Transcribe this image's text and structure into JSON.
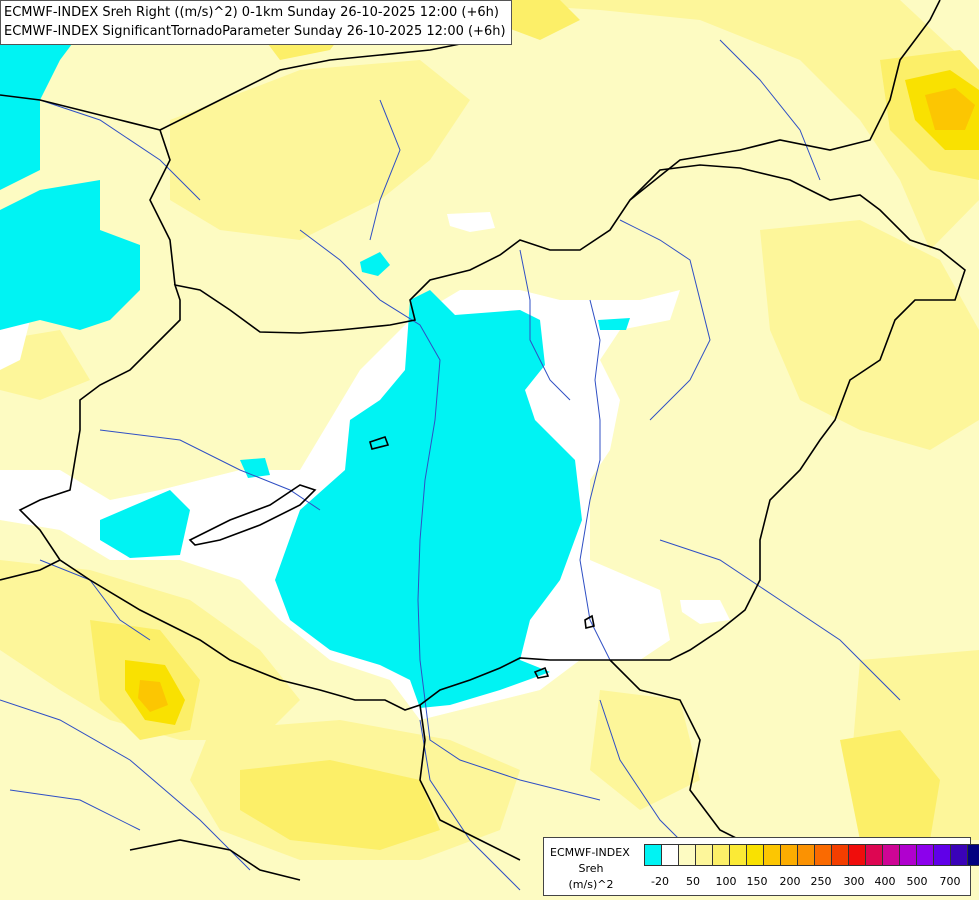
{
  "title": {
    "line1": "ECMWF-INDEX Sreh Right ((m/s)^2) 0-1km Sunday 26-10-2025 12:00 (+6h)",
    "line2": "ECMWF-INDEX SignificantTornadoParameter Sunday 26-10-2025 12:00 (+6h)"
  },
  "legend": {
    "name": "ECMWF-INDEX",
    "variable": "Sreh",
    "unit": "(m/s)^2",
    "colors": [
      "#00f3f3",
      "#ffffff",
      "#fdfbc2",
      "#fdf69a",
      "#fcef68",
      "#fbea36",
      "#f9e101",
      "#fcc602",
      "#fcad01",
      "#fb9202",
      "#fa6a01",
      "#f33e00",
      "#f00d0c",
      "#dd0652",
      "#ce0595",
      "#b001ce",
      "#8c01ec",
      "#6000e8",
      "#3a02b8",
      "#020180"
    ],
    "tick_labels": [
      "-20",
      "50",
      "100",
      "150",
      "200",
      "250",
      "300",
      "400",
      "500",
      "700"
    ]
  },
  "map_colors": {
    "background": "#fdfbc2",
    "cyan": "#00f3f3",
    "white": "#ffffff",
    "yellow_light": "#fdf69a",
    "yellow": "#fcef68",
    "yellow_strong": "#fbea36",
    "yellow_deep": "#f9e101",
    "orange": "#fcc602",
    "border": "#000000",
    "river": "#2f4fc4"
  }
}
